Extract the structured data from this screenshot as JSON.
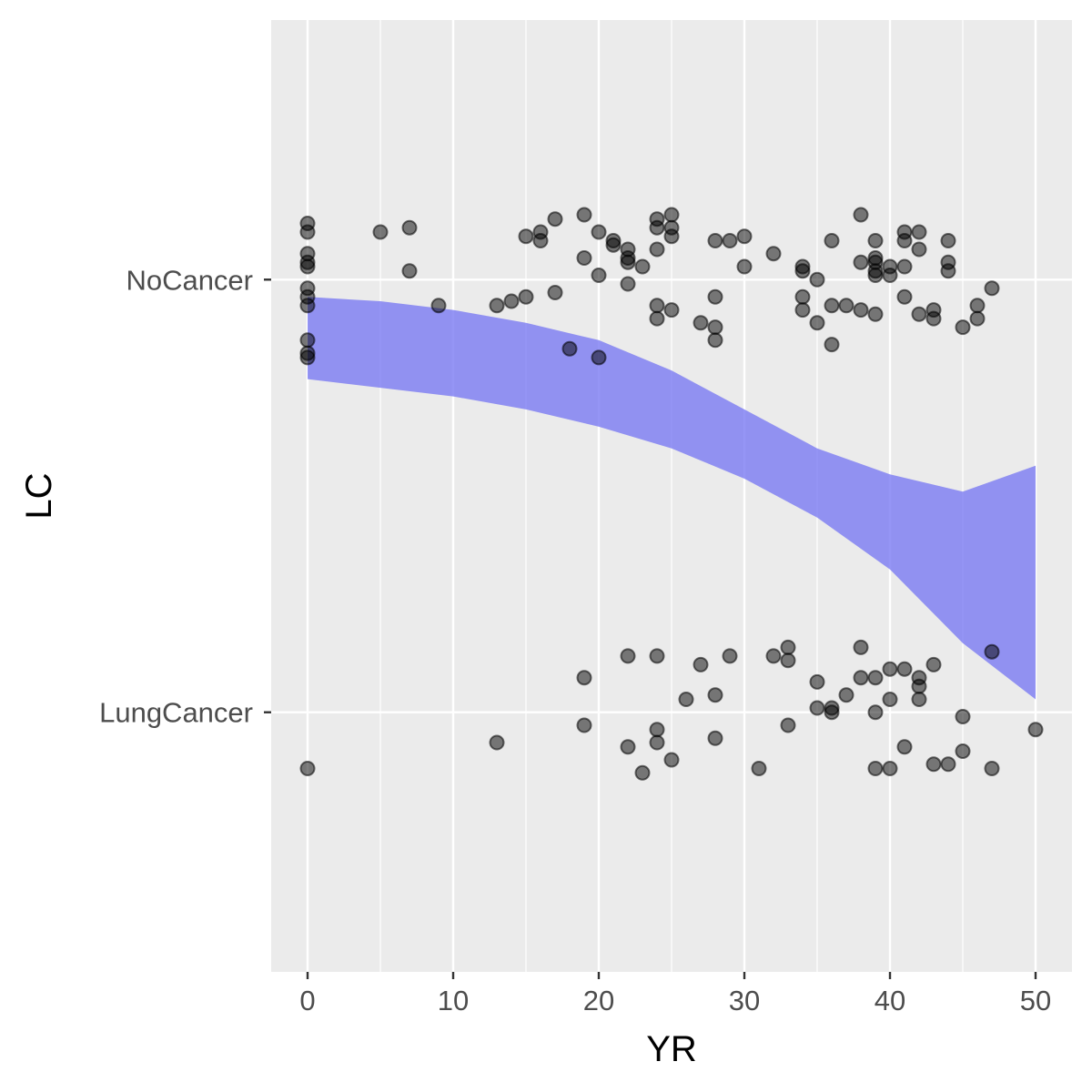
{
  "chart_data": {
    "type": "scatter",
    "title": "",
    "xlabel": "YR",
    "ylabel": "LC",
    "x_ticks": [
      0,
      10,
      20,
      30,
      40,
      50
    ],
    "xlim": [
      -2.5,
      52.5
    ],
    "y_categories": [
      "LungCancer",
      "NoCancer"
    ],
    "y_category_values": {
      "LungCancer": 0,
      "NoCancer": 1
    },
    "ylim": [
      -0.6,
      1.6
    ],
    "grid": true,
    "legend": "none",
    "colors": {
      "panel": "#ebebeb",
      "grid": "#ffffff",
      "point": "#000000",
      "band": "#7b7bf2",
      "tick": "#333333"
    },
    "series": [
      {
        "category": "NoCancer",
        "points": [
          [
            0,
            1.13
          ],
          [
            0,
            1.11
          ],
          [
            0,
            1.06
          ],
          [
            0,
            1.04
          ],
          [
            0,
            1.03
          ],
          [
            0,
            0.98
          ],
          [
            0,
            0.96
          ],
          [
            0,
            0.94
          ],
          [
            0,
            0.86
          ],
          [
            0,
            0.83
          ],
          [
            0,
            0.82
          ],
          [
            5,
            1.11
          ],
          [
            7,
            1.12
          ],
          [
            7,
            1.02
          ],
          [
            9,
            0.94
          ],
          [
            13,
            0.94
          ],
          [
            14,
            0.95
          ],
          [
            15,
            1.1
          ],
          [
            15,
            0.96
          ],
          [
            16,
            1.11
          ],
          [
            16,
            1.09
          ],
          [
            17,
            1.14
          ],
          [
            17,
            0.97
          ],
          [
            18,
            0.84
          ],
          [
            19,
            1.15
          ],
          [
            19,
            1.05
          ],
          [
            20,
            1.11
          ],
          [
            20,
            1.01
          ],
          [
            20,
            0.82
          ],
          [
            21,
            1.09
          ],
          [
            21,
            1.08
          ],
          [
            22,
            1.07
          ],
          [
            22,
            1.05
          ],
          [
            22,
            1.04
          ],
          [
            22,
            0.99
          ],
          [
            23,
            1.03
          ],
          [
            24,
            1.14
          ],
          [
            24,
            1.12
          ],
          [
            24,
            1.07
          ],
          [
            24,
            0.94
          ],
          [
            24,
            0.91
          ],
          [
            25,
            1.15
          ],
          [
            25,
            1.12
          ],
          [
            25,
            1.1
          ],
          [
            25,
            0.93
          ],
          [
            27,
            0.9
          ],
          [
            28,
            1.09
          ],
          [
            28,
            0.96
          ],
          [
            28,
            0.89
          ],
          [
            28,
            0.86
          ],
          [
            29,
            1.09
          ],
          [
            30,
            1.1
          ],
          [
            30,
            1.03
          ],
          [
            32,
            1.06
          ],
          [
            34,
            1.03
          ],
          [
            34,
            1.02
          ],
          [
            34,
            0.96
          ],
          [
            34,
            0.93
          ],
          [
            35,
            1.0
          ],
          [
            35,
            0.9
          ],
          [
            36,
            1.09
          ],
          [
            36,
            0.94
          ],
          [
            36,
            0.85
          ],
          [
            37,
            0.94
          ],
          [
            38,
            1.15
          ],
          [
            38,
            1.04
          ],
          [
            38,
            0.93
          ],
          [
            39,
            1.09
          ],
          [
            39,
            1.05
          ],
          [
            39,
            1.04
          ],
          [
            39,
            1.02
          ],
          [
            39,
            1.01
          ],
          [
            39,
            0.92
          ],
          [
            40,
            1.03
          ],
          [
            40,
            1.01
          ],
          [
            41,
            1.11
          ],
          [
            41,
            1.09
          ],
          [
            41,
            1.03
          ],
          [
            41,
            0.96
          ],
          [
            42,
            1.11
          ],
          [
            42,
            1.07
          ],
          [
            42,
            0.92
          ],
          [
            43,
            0.93
          ],
          [
            43,
            0.91
          ],
          [
            44,
            1.09
          ],
          [
            44,
            1.04
          ],
          [
            44,
            1.02
          ],
          [
            45,
            0.89
          ],
          [
            46,
            0.94
          ],
          [
            46,
            0.91
          ],
          [
            47,
            0.98
          ]
        ]
      },
      {
        "category": "LungCancer",
        "points": [
          [
            0,
            -0.13
          ],
          [
            13,
            -0.07
          ],
          [
            19,
            0.08
          ],
          [
            19,
            -0.03
          ],
          [
            22,
            0.13
          ],
          [
            22,
            -0.08
          ],
          [
            23,
            -0.14
          ],
          [
            24,
            0.13
          ],
          [
            24,
            -0.04
          ],
          [
            24,
            -0.07
          ],
          [
            25,
            -0.11
          ],
          [
            26,
            0.03
          ],
          [
            27,
            0.11
          ],
          [
            28,
            0.04
          ],
          [
            28,
            -0.06
          ],
          [
            29,
            0.13
          ],
          [
            31,
            -0.13
          ],
          [
            32,
            0.13
          ],
          [
            33,
            0.15
          ],
          [
            33,
            0.12
          ],
          [
            33,
            -0.03
          ],
          [
            35,
            0.07
          ],
          [
            35,
            0.01
          ],
          [
            36,
            0.01
          ],
          [
            36,
            0.0
          ],
          [
            37,
            0.04
          ],
          [
            38,
            0.15
          ],
          [
            38,
            0.08
          ],
          [
            39,
            0.08
          ],
          [
            39,
            0.0
          ],
          [
            39,
            -0.13
          ],
          [
            40,
            0.1
          ],
          [
            40,
            0.03
          ],
          [
            40,
            -0.13
          ],
          [
            41,
            0.1
          ],
          [
            41,
            -0.08
          ],
          [
            42,
            0.08
          ],
          [
            42,
            0.06
          ],
          [
            42,
            0.03
          ],
          [
            43,
            0.11
          ],
          [
            43,
            -0.12
          ],
          [
            44,
            -0.12
          ],
          [
            45,
            -0.01
          ],
          [
            45,
            -0.09
          ],
          [
            47,
            0.14
          ],
          [
            47,
            -0.13
          ],
          [
            50,
            -0.04
          ]
        ]
      }
    ],
    "band": {
      "x": [
        0,
        5,
        10,
        15,
        20,
        25,
        30,
        35,
        40,
        45,
        50
      ],
      "upper": [
        0.96,
        0.95,
        0.93,
        0.9,
        0.86,
        0.79,
        0.7,
        0.61,
        0.55,
        0.51,
        0.57
      ],
      "lower": [
        0.77,
        0.75,
        0.73,
        0.7,
        0.66,
        0.61,
        0.54,
        0.45,
        0.33,
        0.16,
        0.03
      ]
    }
  }
}
